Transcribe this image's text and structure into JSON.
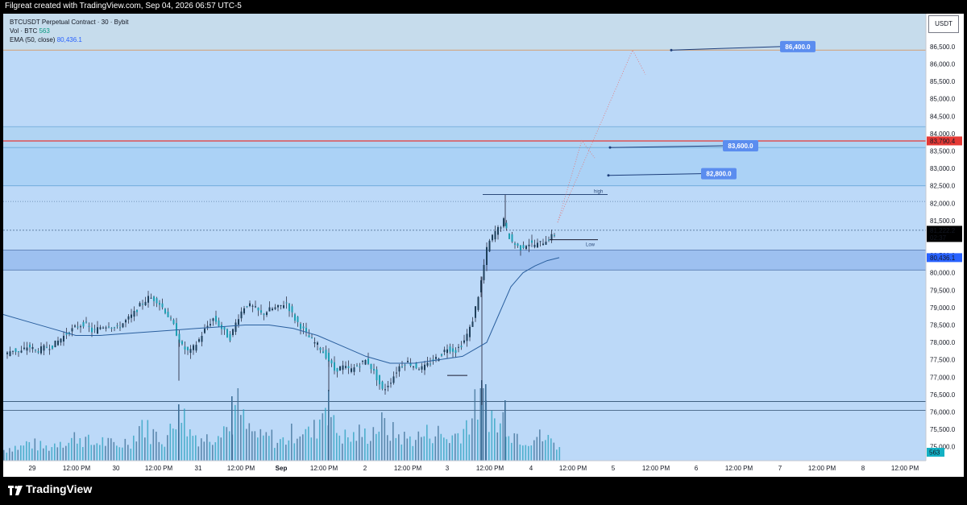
{
  "header": {
    "text": "Filgreat created with TradingView.com, Sep 04, 2026 06:57 UTC-5"
  },
  "legend": {
    "symbol": "BTCUSDT Perpetual Contract · 30 · Bybit",
    "vol_label": "Vol · BTC",
    "vol_value": "563",
    "ema_label": "EMA (50, close)",
    "ema_value": "80,436.1"
  },
  "currency": "USDT",
  "footer": {
    "brand": "TradingView"
  },
  "colors": {
    "bg": "#bcd9f8",
    "up": "#1e3f5a",
    "down": "#1e9fb3",
    "ema": "#2a5f9e",
    "resistance": "#e53935",
    "target": "#5b8def",
    "wick": "#1a1a2e"
  },
  "chart_data": {
    "type": "candlestick",
    "symbol": "BTCUSDT Perpetual Contract",
    "interval": "30",
    "exchange": "Bybit",
    "x_ticks": [
      "29",
      "12:00 PM",
      "30",
      "12:00 PM",
      "31",
      "12:00 PM",
      "Sep",
      "12:00 PM",
      "2",
      "12:00 PM",
      "3",
      "12:00 PM",
      "4",
      "12:00 PM",
      "5",
      "12:00 PM",
      "6",
      "12:00 PM",
      "7",
      "12:00 PM",
      "8",
      "12:00 PM"
    ],
    "y_ticks": [
      "86,500.0",
      "86,000.0",
      "85,500.0",
      "85,000.0",
      "84,500.0",
      "84,000.0",
      "83,500.0",
      "83,000.0",
      "82,500.0",
      "82,000.0",
      "81,500.0",
      "80,500.0",
      "80,000.0",
      "79,500.0",
      "79,000.0",
      "78,500.0",
      "78,000.0",
      "77,500.0",
      "77,000.0",
      "76,500.0",
      "76,000.0",
      "75,500.0",
      "75,000.0"
    ],
    "ylim": [
      74600,
      87400
    ],
    "last_price": {
      "value": "81,222.2",
      "countdown": "02:37"
    },
    "ema_last": "80,436.1",
    "volume_last": "563",
    "resistance": {
      "value": "83,790.4"
    },
    "targets": [
      "86,400.0",
      "83,600.0",
      "82,800.0"
    ],
    "labels": [
      "high",
      "Low"
    ],
    "close_path": [
      [
        0,
        77600
      ],
      [
        10,
        77800
      ],
      [
        20,
        77700
      ],
      [
        30,
        77900
      ],
      [
        40,
        77750
      ],
      [
        50,
        77850
      ],
      [
        60,
        77900
      ],
      [
        70,
        78100
      ],
      [
        80,
        78300
      ],
      [
        90,
        78450
      ],
      [
        100,
        78550
      ],
      [
        110,
        78300
      ],
      [
        120,
        78450
      ],
      [
        130,
        78500
      ],
      [
        140,
        78400
      ],
      [
        150,
        78600
      ],
      [
        160,
        78800
      ],
      [
        170,
        79100
      ],
      [
        180,
        79300
      ],
      [
        190,
        79200
      ],
      [
        200,
        78900
      ],
      [
        210,
        78500
      ],
      [
        220,
        77900
      ],
      [
        230,
        77700
      ],
      [
        240,
        78000
      ],
      [
        250,
        78400
      ],
      [
        260,
        78700
      ],
      [
        270,
        78400
      ],
      [
        280,
        78100
      ],
      [
        290,
        78700
      ],
      [
        300,
        79100
      ],
      [
        310,
        79000
      ],
      [
        320,
        78800
      ],
      [
        330,
        78950
      ],
      [
        340,
        79000
      ],
      [
        350,
        79150
      ],
      [
        360,
        78700
      ],
      [
        370,
        78400
      ],
      [
        380,
        78100
      ],
      [
        390,
        77900
      ],
      [
        400,
        77600
      ],
      [
        410,
        77200
      ],
      [
        420,
        77300
      ],
      [
        430,
        77200
      ],
      [
        440,
        77350
      ],
      [
        450,
        77500
      ],
      [
        460,
        77100
      ],
      [
        470,
        76600
      ],
      [
        480,
        76900
      ],
      [
        490,
        77300
      ],
      [
        500,
        77450
      ],
      [
        510,
        77300
      ],
      [
        520,
        77250
      ],
      [
        530,
        77450
      ],
      [
        540,
        77600
      ],
      [
        550,
        77850
      ],
      [
        560,
        77750
      ],
      [
        570,
        78000
      ],
      [
        580,
        78500
      ],
      [
        590,
        79500
      ],
      [
        600,
        80800
      ],
      [
        605,
        81000
      ],
      [
        610,
        81200
      ],
      [
        615,
        81300
      ],
      [
        620,
        81500
      ],
      [
        625,
        81100
      ],
      [
        630,
        80900
      ],
      [
        640,
        80700
      ],
      [
        650,
        80850
      ],
      [
        660,
        80800
      ],
      [
        670,
        80900
      ],
      [
        680,
        81050
      ],
      [
        690,
        81222
      ]
    ],
    "ema_path": [
      [
        0,
        78800
      ],
      [
        30,
        78600
      ],
      [
        60,
        78400
      ],
      [
        90,
        78200
      ],
      [
        120,
        78200
      ],
      [
        150,
        78250
      ],
      [
        180,
        78300
      ],
      [
        210,
        78350
      ],
      [
        240,
        78400
      ],
      [
        270,
        78450
      ],
      [
        300,
        78500
      ],
      [
        330,
        78500
      ],
      [
        360,
        78400
      ],
      [
        390,
        78200
      ],
      [
        420,
        77900
      ],
      [
        450,
        77600
      ],
      [
        480,
        77400
      ],
      [
        510,
        77400
      ],
      [
        540,
        77500
      ],
      [
        570,
        77600
      ],
      [
        600,
        78000
      ],
      [
        615,
        78800
      ],
      [
        630,
        79600
      ],
      [
        645,
        80000
      ],
      [
        660,
        80200
      ],
      [
        675,
        80350
      ],
      [
        690,
        80436
      ]
    ],
    "volume_path": [
      [
        0,
        15
      ],
      [
        10,
        20
      ],
      [
        20,
        18
      ],
      [
        30,
        25
      ],
      [
        40,
        22
      ],
      [
        50,
        18
      ],
      [
        60,
        20
      ],
      [
        70,
        30
      ],
      [
        80,
        25
      ],
      [
        90,
        35
      ],
      [
        100,
        30
      ],
      [
        110,
        22
      ],
      [
        120,
        28
      ],
      [
        130,
        24
      ],
      [
        140,
        20
      ],
      [
        150,
        26
      ],
      [
        160,
        30
      ],
      [
        170,
        55
      ],
      [
        180,
        40
      ],
      [
        190,
        35
      ],
      [
        200,
        30
      ],
      [
        210,
        45
      ],
      [
        220,
        70
      ],
      [
        230,
        40
      ],
      [
        240,
        35
      ],
      [
        250,
        30
      ],
      [
        260,
        35
      ],
      [
        270,
        55
      ],
      [
        280,
        40
      ],
      [
        290,
        80
      ],
      [
        300,
        45
      ],
      [
        310,
        38
      ],
      [
        320,
        30
      ],
      [
        330,
        35
      ],
      [
        340,
        25
      ],
      [
        350,
        30
      ],
      [
        360,
        40
      ],
      [
        370,
        45
      ],
      [
        380,
        35
      ],
      [
        390,
        50
      ],
      [
        400,
        90
      ],
      [
        410,
        45
      ],
      [
        420,
        35
      ],
      [
        430,
        30
      ],
      [
        440,
        38
      ],
      [
        450,
        35
      ],
      [
        460,
        45
      ],
      [
        470,
        50
      ],
      [
        480,
        40
      ],
      [
        490,
        35
      ],
      [
        500,
        30
      ],
      [
        510,
        32
      ],
      [
        520,
        35
      ],
      [
        530,
        40
      ],
      [
        540,
        38
      ],
      [
        550,
        30
      ],
      [
        560,
        35
      ],
      [
        570,
        45
      ],
      [
        580,
        60
      ],
      [
        590,
        85
      ],
      [
        595,
        100
      ],
      [
        600,
        70
      ],
      [
        605,
        65
      ],
      [
        610,
        50
      ],
      [
        615,
        45
      ],
      [
        620,
        60
      ],
      [
        625,
        55
      ],
      [
        630,
        40
      ],
      [
        640,
        35
      ],
      [
        650,
        30
      ],
      [
        660,
        35
      ],
      [
        670,
        30
      ],
      [
        680,
        28
      ],
      [
        690,
        20
      ]
    ]
  }
}
